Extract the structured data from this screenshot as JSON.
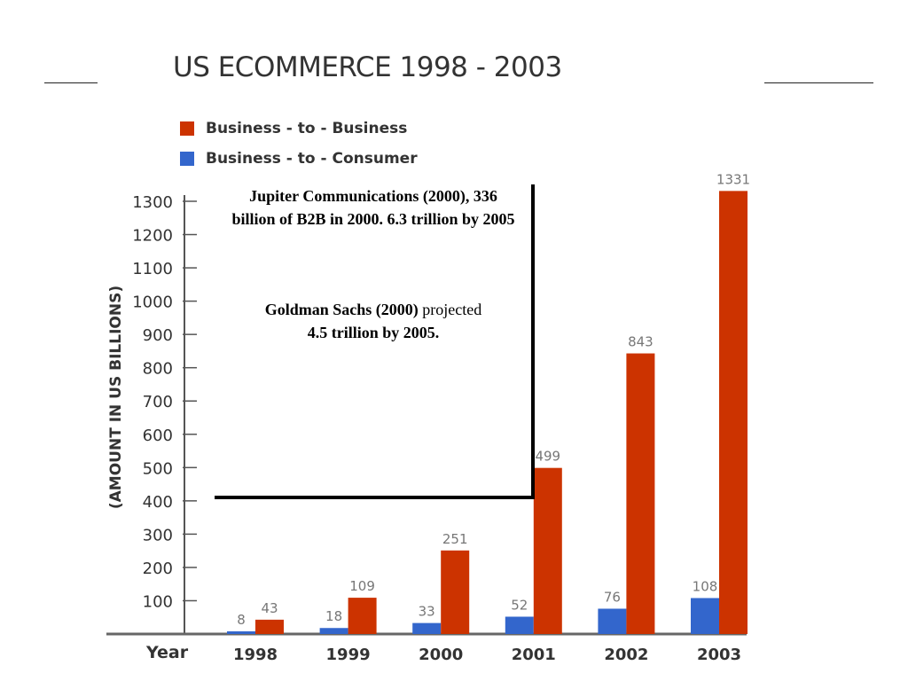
{
  "chart_data": {
    "type": "bar",
    "title": "US ECOMMERCE 1998 - 2003",
    "xlabel": "Year",
    "ylabel": "(AMOUNT IN US BILLIONS)",
    "categories": [
      "1998",
      "1999",
      "2000",
      "2001",
      "2002",
      "2003"
    ],
    "series": [
      {
        "name": "Business - to - Consumer",
        "color": "#3366cc",
        "values": [
          8,
          18,
          33,
          52,
          76,
          108
        ]
      },
      {
        "name": "Business - to - Business",
        "color": "#cc3300",
        "values": [
          43,
          109,
          251,
          499,
          843,
          1331
        ]
      }
    ],
    "legend_order": [
      1,
      0
    ],
    "legend_position": "top-left",
    "yticks": [
      100,
      200,
      300,
      400,
      500,
      600,
      700,
      800,
      900,
      1000,
      1100,
      1200,
      1300
    ],
    "ylim": [
      0,
      1300
    ],
    "grid": false
  },
  "annotations": {
    "jupiter": "Jupiter Communications (2000), 336 billion of B2B in 2000. 6.3 trillion by 2005",
    "goldman_bold": "Goldman Sachs (2000)",
    "goldman_text": " projected",
    "goldman_bold2": "4.5 trillion by 2005."
  }
}
